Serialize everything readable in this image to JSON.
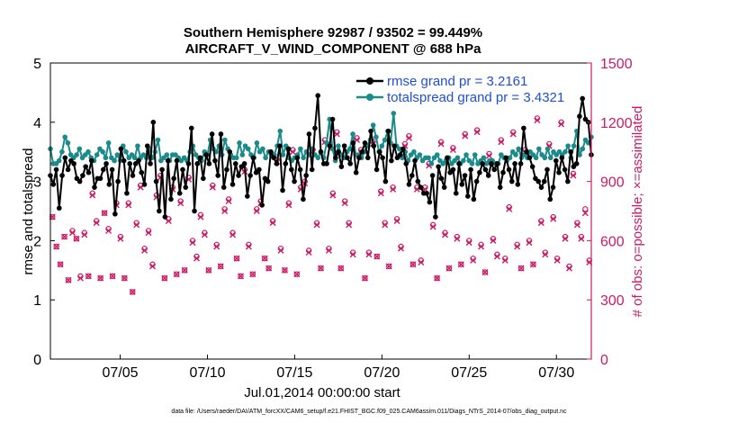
{
  "chart_data": {
    "type": "line",
    "title_line1": "Southern Hemisphere 92987 / 93502 = 99.449%",
    "title_line2": "AIRCRAFT_V_WIND_COMPONENT @ 688 hPa",
    "xlabel": "Jul.01,2014 00:00:00 start",
    "ylabel_left": "rmse and totalspread",
    "ylabel_right": "# of obs: o=possible; ×=assimilated",
    "xlim": [
      1,
      32
    ],
    "ylim_left": [
      0,
      5
    ],
    "ylim_right": [
      0,
      1500
    ],
    "x_ticks": [
      5,
      10,
      15,
      20,
      25,
      30
    ],
    "x_tick_labels": [
      "07/05",
      "07/10",
      "07/15",
      "07/20",
      "07/25",
      "07/30"
    ],
    "y_ticks_left": [
      "0",
      "1",
      "2",
      "3",
      "4",
      "5"
    ],
    "y_ticks_right": [
      "0",
      "300",
      "600",
      "900",
      "1200",
      "1500"
    ],
    "colors": {
      "rmse": "#000000",
      "spread": "#1a8a8a",
      "obs": "#cc1a66",
      "legend_text": "#1f4fd8",
      "right_axis": "#cc1a66"
    },
    "series": [
      {
        "name": "rmse",
        "legend": "rmse grand pr = 3.2161",
        "values": [
          3.1,
          2.95,
          3.2,
          2.55,
          3.1,
          3.4,
          3.2,
          3.35,
          3.3,
          3.05,
          3.0,
          3.1,
          3.25,
          3.15,
          3.35,
          2.9,
          3.05,
          3.05,
          3.2,
          3.3,
          2.95,
          3.2,
          2.45,
          3.0,
          3.55,
          3.35,
          2.8,
          3.3,
          3.1,
          3.3,
          3.35,
          3.15,
          2.95,
          3.6,
          3.3,
          4.0,
          3.0,
          2.5,
          3.2,
          2.4,
          3.35,
          2.7,
          3.05,
          3.35,
          2.8,
          3.2,
          2.9,
          3.3,
          3.9,
          2.5,
          3.3,
          3.4,
          3.05,
          3.45,
          3.3,
          3.8,
          3.35,
          3.1,
          3.8,
          2.9,
          3.2,
          3.5,
          2.95,
          3.3,
          3.1,
          3.25,
          3.3,
          2.75,
          3.1,
          3.4,
          3.15,
          3.2,
          2.6,
          3.05,
          3.0,
          3.5,
          3.4,
          3.3,
          3.6,
          2.85,
          3.3,
          3.55,
          3.2,
          3.0,
          3.4,
          3.2,
          2.7,
          3.1,
          3.8,
          3.2,
          3.9,
          4.45,
          3.5,
          3.3,
          3.3,
          3.6,
          4.05,
          3.4,
          3.5,
          3.25,
          3.6,
          3.4,
          3.3,
          3.65,
          3.15,
          3.4,
          3.5,
          3.65,
          3.4,
          3.85,
          3.6,
          3.2,
          3.5,
          3.4,
          3.0,
          3.85,
          3.35,
          3.6,
          3.4,
          3.45,
          3.55,
          3.3,
          2.95,
          3.1,
          3.35,
          3.0,
          2.9,
          2.8,
          2.8,
          2.65,
          3.1,
          2.4,
          3.25,
          3.05,
          2.9,
          3.4,
          3.15,
          3.2,
          2.8,
          3.3,
          2.95,
          3.1,
          2.75,
          3.2,
          2.7,
          3.0,
          3.15,
          3.3,
          3.2,
          3.1,
          3.3,
          3.2,
          3.3,
          2.9,
          3.15,
          3.4,
          3.2,
          3.0,
          3.3,
          2.95,
          3.3,
          3.9,
          3.5,
          3.4,
          3.25,
          3.05,
          3.0,
          2.9,
          3.0,
          3.2,
          2.7,
          2.9,
          3.35,
          3.15,
          3.4,
          3.2,
          3.0,
          3.5,
          3.25,
          3.3,
          4.1,
          4.4,
          4.05,
          4.0,
          3.45
        ]
      },
      {
        "name": "totalspread",
        "legend": "totalspread grand pr = 3.4321",
        "values": [
          3.55,
          3.3,
          3.3,
          3.35,
          3.5,
          3.75,
          3.65,
          3.45,
          3.4,
          3.45,
          3.55,
          3.4,
          3.45,
          3.5,
          3.4,
          3.35,
          3.45,
          3.55,
          3.5,
          3.4,
          3.65,
          3.4,
          3.35,
          3.45,
          3.35,
          3.6,
          3.5,
          3.4,
          3.45,
          3.4,
          3.6,
          3.4,
          3.45,
          3.4,
          3.55,
          3.4,
          3.5,
          3.7,
          3.35,
          3.4,
          3.45,
          3.35,
          3.45,
          3.45,
          3.4,
          3.35,
          3.4,
          3.35,
          3.5,
          3.6,
          3.45,
          3.4,
          3.35,
          3.5,
          3.45,
          3.7,
          3.55,
          3.5,
          3.6,
          3.45,
          3.7,
          3.55,
          3.45,
          3.4,
          3.4,
          3.65,
          3.45,
          3.6,
          3.55,
          3.45,
          3.4,
          3.65,
          3.5,
          3.55,
          3.4,
          3.5,
          3.45,
          3.45,
          3.6,
          3.85,
          3.45,
          3.6,
          3.4,
          3.35,
          3.4,
          3.45,
          3.55,
          3.4,
          3.5,
          3.45,
          3.55,
          3.45,
          3.4,
          3.5,
          3.4,
          3.65,
          4.05,
          3.55,
          3.35,
          3.6,
          3.45,
          3.4,
          3.5,
          3.55,
          3.8,
          3.45,
          3.45,
          3.4,
          3.5,
          3.6,
          3.7,
          3.95,
          3.75,
          3.5,
          3.6,
          3.7,
          3.85,
          3.65,
          4.15,
          3.6,
          3.55,
          3.4,
          3.5,
          3.35,
          3.45,
          3.5,
          3.4,
          3.45,
          3.35,
          3.4,
          3.4,
          3.3,
          3.4,
          3.45,
          3.35,
          3.3,
          3.35,
          3.4,
          3.3,
          3.35,
          3.4,
          3.3,
          3.35,
          3.45,
          3.35,
          3.3,
          3.45,
          3.3,
          3.35,
          3.4,
          3.3,
          3.35,
          3.35,
          3.3,
          3.3,
          3.45,
          3.4,
          3.35,
          3.4,
          3.5,
          3.45,
          3.55,
          3.4,
          3.45,
          3.4,
          3.5,
          3.45,
          3.4,
          3.55,
          3.45,
          3.4,
          3.55,
          3.4,
          3.5,
          3.45,
          3.5,
          3.45,
          3.5,
          3.6,
          3.4,
          3.6,
          3.85,
          3.45,
          3.55,
          3.7,
          3.65,
          3.75
        ]
      },
      {
        "name": "obs_possible",
        "values": [
          720,
          570,
          480,
          620,
          400,
          650,
          610,
          420,
          640,
          420,
          840,
          700,
          410,
          740,
          660,
          420,
          790,
          620,
          410,
          790,
          340,
          690,
          880,
          560,
          650,
          480,
          830,
          930,
          410,
          710,
          870,
          430,
          800,
          450,
          920,
          600,
          520,
          730,
          640,
          450,
          880,
          580,
          470,
          760,
          810,
          640,
          510,
          420,
          960,
          580,
          430,
          760,
          800,
          510,
          460,
          700,
          1010,
          560,
          450,
          790,
          1060,
          430,
          870,
          900,
          550,
          1060,
          690,
          460,
          1110,
          560,
          840,
          1150,
          460,
          800,
          690,
          540,
          1120,
          1060,
          410,
          540,
          1100,
          520,
          850,
          690,
          470,
          870,
          710,
          570,
          1090,
          1130,
          480,
          870,
          500,
          870,
          990,
          680,
          410,
          1100,
          640,
          460,
          1070,
          620,
          480,
          1140,
          600,
          510,
          1160,
          580,
          440,
          1040,
          610,
          530,
          1110,
          510,
          770,
          1150,
          580,
          460,
          1060,
          600,
          480,
          1220,
          700,
          540,
          1090,
          720,
          510,
          1200,
          620,
          470,
          940,
          690,
          620,
          760,
          500
        ]
      },
      {
        "name": "obs_assimilated",
        "values": [
          720,
          570,
          480,
          620,
          400,
          640,
          610,
          410,
          630,
          420,
          830,
          690,
          410,
          740,
          650,
          420,
          780,
          610,
          410,
          780,
          340,
          680,
          870,
          550,
          640,
          470,
          820,
          920,
          410,
          700,
          860,
          430,
          790,
          450,
          910,
          590,
          510,
          720,
          630,
          450,
          870,
          570,
          470,
          750,
          800,
          630,
          510,
          420,
          950,
          570,
          430,
          750,
          790,
          510,
          460,
          690,
          1000,
          550,
          450,
          780,
          1050,
          430,
          860,
          890,
          540,
          1050,
          680,
          460,
          1100,
          550,
          830,
          1140,
          460,
          790,
          680,
          530,
          1110,
          1050,
          410,
          530,
          1090,
          520,
          840,
          680,
          470,
          860,
          700,
          560,
          1080,
          1120,
          480,
          860,
          490,
          860,
          980,
          670,
          410,
          1090,
          630,
          460,
          1060,
          610,
          480,
          1130,
          590,
          500,
          1150,
          570,
          440,
          1030,
          600,
          520,
          1100,
          500,
          760,
          1140,
          570,
          460,
          1050,
          590,
          480,
          1210,
          690,
          530,
          1080,
          710,
          500,
          1190,
          610,
          460,
          930,
          680,
          610,
          740,
          490
        ]
      }
    ]
  },
  "footer": "data file: /Users/raeder/DAI/ATM_forcXX/CAM6_setup/f.e21.FHIST_BGC.f09_025.CAM6assim.011/Diags_NTrS_2014-07/obs_diag_output.nc"
}
